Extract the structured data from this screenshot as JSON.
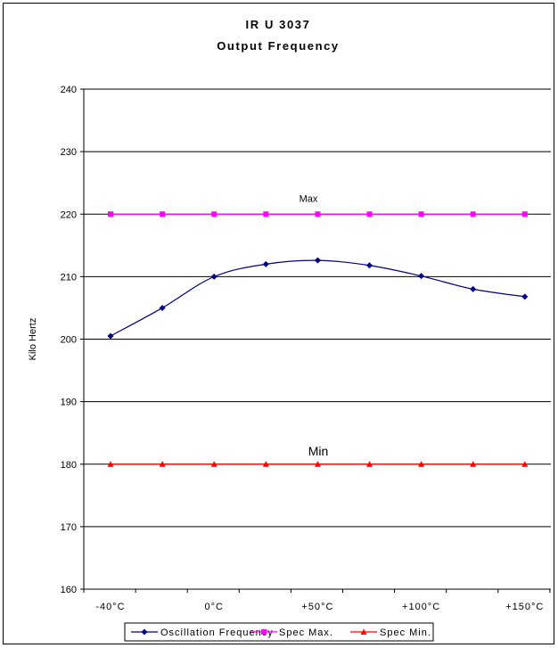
{
  "chart_data": {
    "type": "line",
    "title_line1": "IR U 3037",
    "title_line2": "Output Frequency",
    "ylabel": "Kilo Hertz",
    "ylim": [
      160,
      240
    ],
    "yticks": [
      "160",
      "170",
      "180",
      "190",
      "200",
      "210",
      "220",
      "230",
      "240"
    ],
    "ytick_values": [
      160,
      170,
      180,
      190,
      200,
      210,
      220,
      230,
      240
    ],
    "x_tick_labels": [
      "-40°C",
      "0°C",
      "+50°C",
      "+100°C",
      "+150°C"
    ],
    "grid": true,
    "legend_position": "bottom",
    "series": [
      {
        "name": "Oscillation Frequency",
        "color": "#000080",
        "marker": "diamond",
        "values": [
          200.5,
          205,
          210,
          212,
          212.6,
          211.8,
          210.1,
          208,
          206.8
        ]
      },
      {
        "name": "Spec Max.",
        "color": "#ff00ff",
        "marker": "square",
        "values": [
          220,
          220,
          220,
          220,
          220,
          220,
          220,
          220,
          220
        ]
      },
      {
        "name": "Spec Min.",
        "color": "#ff0000",
        "marker": "triangle",
        "values": [
          180,
          180,
          180,
          180,
          180,
          180,
          180,
          180,
          180
        ]
      }
    ],
    "annotations": [
      {
        "text": "Max",
        "y": 220
      },
      {
        "text": "Min",
        "y": 180
      }
    ]
  }
}
